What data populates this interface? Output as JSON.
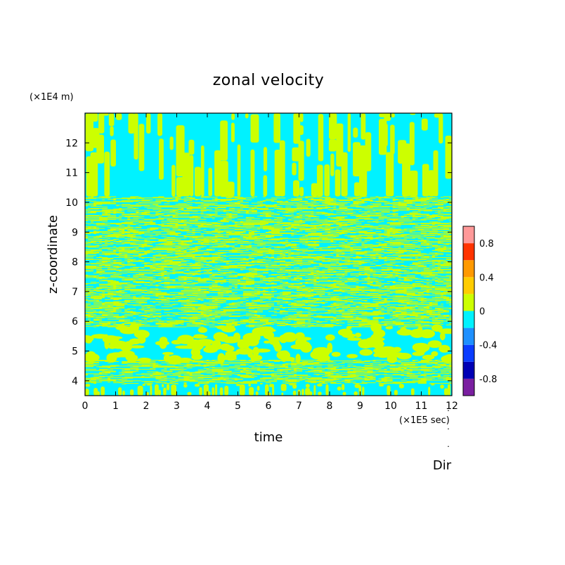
{
  "chart_data": {
    "type": "heatmap",
    "title": "zonal velocity",
    "xlabel": "time",
    "ylabel": "z-coordinate",
    "x_scale_label": "(×1E5 sec)",
    "y_scale_label": "(×1E4 m)",
    "xlim": [
      0,
      12
    ],
    "ylim": [
      3.5,
      13
    ],
    "x_ticks": [
      "0",
      "1",
      "2",
      "3",
      "4",
      "5",
      "6",
      "7",
      "8",
      "9",
      "10",
      "11",
      "12"
    ],
    "y_ticks": [
      "4",
      "5",
      "6",
      "7",
      "8",
      "9",
      "10",
      "11",
      "12"
    ],
    "colorbar": {
      "range": [
        -1.0,
        1.0
      ],
      "levels": [
        -1.0,
        -0.8,
        -0.6,
        -0.4,
        -0.2,
        0.0,
        0.2,
        0.4,
        0.6,
        0.8,
        1.0
      ],
      "colors": [
        "#7a1fa0",
        "#0000b4",
        "#0a3cff",
        "#1e90ff",
        "#00f2ff",
        "#ccff00",
        "#ffcc00",
        "#ff9900",
        "#ff3300",
        "#ff9999"
      ],
      "tick_labels": [
        "0.8",
        "0.4",
        "0",
        "-0.4",
        "-0.8"
      ],
      "tick_values": [
        0.8,
        0.4,
        0.0,
        -0.4,
        -0.8
      ]
    },
    "regions": [
      {
        "z_range": [
          10.2,
          13
        ],
        "pattern": "vertical streaks",
        "dominant_colors": [
          "#00f2ff",
          "#ccff00"
        ]
      },
      {
        "z_range": [
          5.8,
          10.2
        ],
        "pattern": "fine horizontal layering",
        "dominant_colors": [
          "#00f2ff",
          "#ccff00"
        ]
      },
      {
        "z_range": [
          4.7,
          5.8
        ],
        "pattern": "patchy blobs",
        "dominant_colors": [
          "#00f2ff",
          "#ccff00"
        ]
      },
      {
        "z_range": [
          3.9,
          4.7
        ],
        "pattern": "fine horizontal layering",
        "dominant_colors": [
          "#00f2ff",
          "#ccff00"
        ]
      },
      {
        "z_range": [
          3.5,
          3.9
        ],
        "pattern": "short vertical streaks",
        "dominant_colors": [
          "#00f2ff",
          "#ccff00"
        ]
      }
    ]
  },
  "footer": {
    "dir_label": "Dir"
  }
}
